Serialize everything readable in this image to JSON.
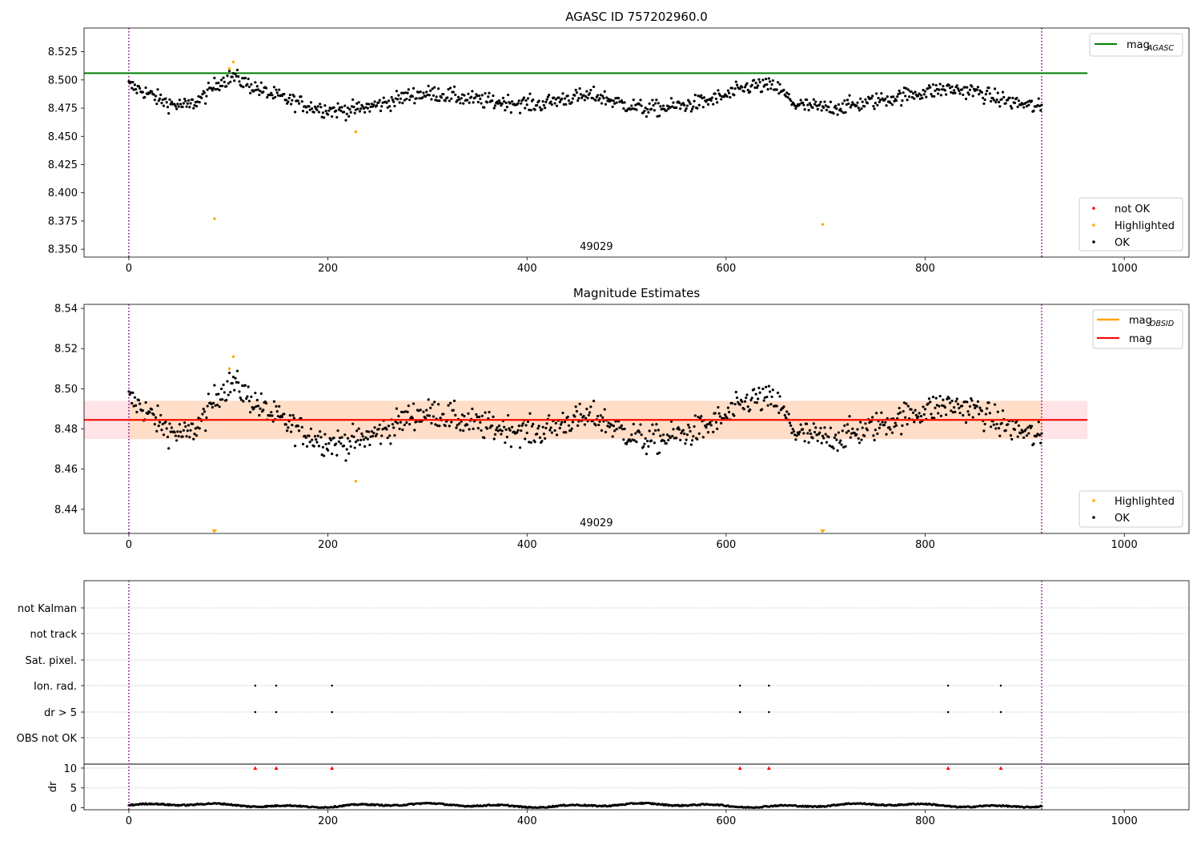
{
  "colors": {
    "ok": "#000000",
    "highlighted": "#ffa500",
    "not_ok": "#ff0000",
    "mag_agasc": "#008000",
    "mag_line": "#ff0000",
    "mag_obsid": "#ffa500",
    "band_outer": "#ffb6c1",
    "band_inner": "#ffdab9",
    "obs_boundary": "#800080",
    "gridline": "#b0b0b0"
  },
  "chart_data": [
    {
      "type": "scatter",
      "title": "AGASC ID 757202960.0",
      "xlim": [
        -45,
        1065
      ],
      "ylim": [
        8.343,
        8.546
      ],
      "xticks": [
        "0",
        "200",
        "400",
        "600",
        "800",
        "1000"
      ],
      "yticks": [
        "8.350",
        "8.375",
        "8.400",
        "8.425",
        "8.450",
        "8.475",
        "8.500",
        "8.525"
      ],
      "obs_boundaries": [
        0,
        917
      ],
      "obsid_label": "49029",
      "obsid_label_x": 460,
      "lines": [
        {
          "name": "mag_AGASC",
          "y": 8.506,
          "x_range": [
            -45,
            963
          ]
        }
      ],
      "legend_top": {
        "placement": "upper-right",
        "entries": [
          {
            "label": "mag",
            "sub": "AGASC"
          }
        ]
      },
      "legend_bottom": {
        "placement": "lower-right",
        "entries": [
          "not OK",
          "Highlighted",
          "OK"
        ]
      },
      "highlighted_points": [
        [
          86,
          8.377
        ],
        [
          101,
          8.51
        ],
        [
          105,
          8.516
        ],
        [
          228,
          8.454
        ],
        [
          697,
          8.372
        ]
      ],
      "not_ok_points": [],
      "series_note": "OK series: ~920 black points, x 0–917, y ~8.462–8.509"
    },
    {
      "type": "scatter",
      "title": "Magnitude Estimates",
      "xlim": [
        -45,
        1065
      ],
      "ylim": [
        8.428,
        8.542
      ],
      "xticks": [
        "0",
        "200",
        "400",
        "600",
        "800",
        "1000"
      ],
      "yticks": [
        "8.44",
        "8.46",
        "8.48",
        "8.50",
        "8.52",
        "8.54"
      ],
      "obs_boundaries": [
        0,
        917
      ],
      "obsid_label": "49029",
      "obsid_label_x": 460,
      "lines": [
        {
          "name": "mag",
          "y": 8.4845,
          "x_range": [
            -45,
            963
          ]
        },
        {
          "name": "mag_OBSID",
          "y": 8.4845,
          "x_range": [
            0,
            917
          ]
        }
      ],
      "bands": [
        {
          "name": "mag band",
          "y0": 8.475,
          "y1": 8.494,
          "x_range": [
            -45,
            963
          ]
        },
        {
          "name": "mag_OBSID band",
          "y0": 8.475,
          "y1": 8.494,
          "x_range": [
            0,
            917
          ]
        }
      ],
      "legend_top": {
        "placement": "upper-right",
        "entries": [
          {
            "label": "mag",
            "sub": "OBSID"
          },
          {
            "label": "mag",
            "sub": ""
          }
        ]
      },
      "legend_bottom": {
        "placement": "lower-right",
        "entries": [
          "Highlighted",
          "OK"
        ]
      },
      "highlighted_points": [
        [
          101,
          8.51
        ],
        [
          105,
          8.516
        ],
        [
          228,
          8.454
        ]
      ],
      "clipped_markers": [
        86,
        697
      ]
    },
    {
      "type": "scatter",
      "title": "",
      "xlim": [
        -45,
        1065
      ],
      "xticks": [
        "0",
        "200",
        "400",
        "600",
        "800",
        "1000"
      ],
      "obs_boundaries": [
        0,
        917
      ],
      "categories": [
        "not Kalman",
        "not track",
        "Sat. pixel.",
        "Ion. rad.",
        "dr > 5",
        "OBS not OK"
      ],
      "flag_points": {
        "Ion. rad.": [
          127,
          148,
          204,
          614,
          643,
          823,
          876
        ],
        "dr > 5": [
          127,
          148,
          204,
          614,
          643,
          823,
          876
        ]
      },
      "dr": {
        "ylabel": "dr",
        "ylim": [
          -0.5,
          11
        ],
        "yticks": [
          "0",
          "5",
          "10"
        ],
        "outliers_at_10": [
          127,
          148,
          204,
          614,
          643,
          823,
          876
        ],
        "series_note": "black points 0–917, dr ~0–1.4"
      }
    }
  ]
}
